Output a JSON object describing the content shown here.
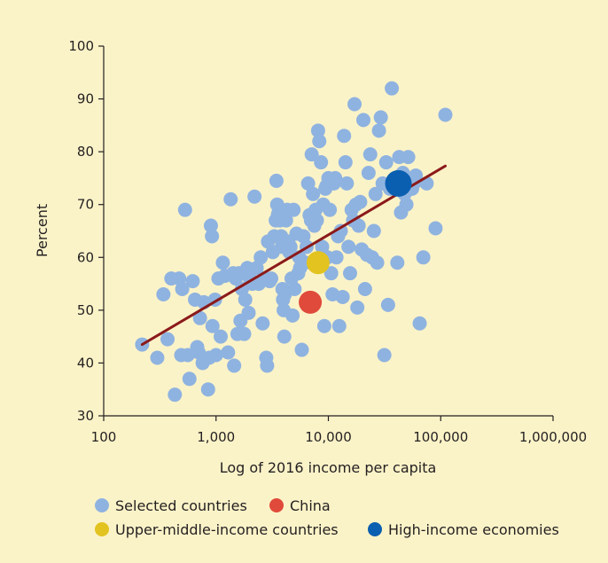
{
  "chart_data": {
    "type": "scatter",
    "title": "",
    "xlabel": "Log of 2016 income per capita",
    "ylabel": "Percent",
    "x_scale": "log",
    "xlim": [
      100,
      1000000
    ],
    "ylim": [
      30,
      100
    ],
    "x_ticks": [
      {
        "value": 100,
        "label": "100"
      },
      {
        "value": 1000,
        "label": "1,000"
      },
      {
        "value": 10000,
        "label": "10,000"
      },
      {
        "value": 100000,
        "label": "100,000"
      },
      {
        "value": 1000000,
        "label": "1,000,000"
      }
    ],
    "y_ticks": [
      {
        "value": 30,
        "label": "30"
      },
      {
        "value": 40,
        "label": "40"
      },
      {
        "value": 50,
        "label": "50"
      },
      {
        "value": 60,
        "label": "60"
      },
      {
        "value": 70,
        "label": "70"
      },
      {
        "value": 80,
        "label": "80"
      },
      {
        "value": 90,
        "label": "90"
      },
      {
        "value": 100,
        "label": "100"
      }
    ],
    "grid": false,
    "legend_position": "bottom",
    "colors": {
      "background": "#fbf3c8",
      "selected": "#8fb3e0",
      "china": "#e04a3a",
      "umic": "#e2c320",
      "high": "#0a5fb0",
      "trend": "#8b1a1a",
      "axis": "#231f20"
    },
    "trendline": {
      "x": [
        220,
        110000
      ],
      "y": [
        43.5,
        77.3
      ]
    },
    "series": [
      {
        "name": "Selected countries",
        "color_key": "selected",
        "points": [
          [
            220,
            43.5
          ],
          [
            300,
            41
          ],
          [
            340,
            53
          ],
          [
            370,
            44.5
          ],
          [
            400,
            56
          ],
          [
            430,
            34
          ],
          [
            470,
            56
          ],
          [
            490,
            41.5
          ],
          [
            500,
            54
          ],
          [
            530,
            69
          ],
          [
            560,
            41.5
          ],
          [
            580,
            37
          ],
          [
            620,
            55.5
          ],
          [
            650,
            52
          ],
          [
            680,
            43
          ],
          [
            700,
            42
          ],
          [
            720,
            48.5
          ],
          [
            760,
            40
          ],
          [
            780,
            51.5
          ],
          [
            850,
            35
          ],
          [
            870,
            41
          ],
          [
            900,
            66
          ],
          [
            920,
            64
          ],
          [
            930,
            47
          ],
          [
            980,
            52
          ],
          [
            1000,
            41.5
          ],
          [
            1050,
            56
          ],
          [
            1100,
            45
          ],
          [
            1150,
            59
          ],
          [
            1200,
            56.5
          ],
          [
            1280,
            42
          ],
          [
            1350,
            71
          ],
          [
            1420,
            57
          ],
          [
            1450,
            39.5
          ],
          [
            1500,
            56
          ],
          [
            1550,
            45.5
          ],
          [
            1600,
            57
          ],
          [
            1650,
            48
          ],
          [
            1700,
            54
          ],
          [
            1780,
            45.5
          ],
          [
            1820,
            52
          ],
          [
            1900,
            58
          ],
          [
            1950,
            49.5
          ],
          [
            2000,
            56
          ],
          [
            2100,
            55
          ],
          [
            2200,
            71.5
          ],
          [
            2300,
            58
          ],
          [
            2400,
            55
          ],
          [
            2500,
            60
          ],
          [
            2600,
            47.5
          ],
          [
            2700,
            56
          ],
          [
            2800,
            41
          ],
          [
            2850,
            39.5
          ],
          [
            2900,
            63
          ],
          [
            3000,
            55.5
          ],
          [
            3100,
            56
          ],
          [
            3200,
            61
          ],
          [
            3300,
            64
          ],
          [
            3400,
            67
          ],
          [
            3450,
            74.5
          ],
          [
            3500,
            70
          ],
          [
            3550,
            68
          ],
          [
            3600,
            68.5
          ],
          [
            3700,
            67
          ],
          [
            3800,
            64
          ],
          [
            3850,
            62
          ],
          [
            3900,
            54
          ],
          [
            3950,
            52
          ],
          [
            4000,
            50
          ],
          [
            4050,
            45
          ],
          [
            4100,
            53
          ],
          [
            4200,
            67
          ],
          [
            4300,
            69
          ],
          [
            4400,
            63
          ],
          [
            4500,
            61
          ],
          [
            4600,
            62
          ],
          [
            4700,
            56
          ],
          [
            4800,
            49
          ],
          [
            4900,
            69
          ],
          [
            5000,
            54
          ],
          [
            5200,
            64.5
          ],
          [
            5400,
            57
          ],
          [
            5500,
            60
          ],
          [
            5600,
            58
          ],
          [
            5800,
            42.5
          ],
          [
            6000,
            64
          ],
          [
            6200,
            59
          ],
          [
            6400,
            62
          ],
          [
            6600,
            74
          ],
          [
            6800,
            68
          ],
          [
            7000,
            67
          ],
          [
            7100,
            79.5
          ],
          [
            7200,
            68
          ],
          [
            7300,
            72
          ],
          [
            7500,
            66
          ],
          [
            7700,
            69
          ],
          [
            7900,
            67
          ],
          [
            8100,
            84
          ],
          [
            8300,
            82
          ],
          [
            8600,
            78
          ],
          [
            8800,
            62
          ],
          [
            9000,
            70
          ],
          [
            9200,
            47
          ],
          [
            9400,
            73
          ],
          [
            9600,
            73.5
          ],
          [
            9800,
            60
          ],
          [
            10000,
            75
          ],
          [
            10300,
            69
          ],
          [
            10600,
            57
          ],
          [
            10900,
            53
          ],
          [
            11200,
            74
          ],
          [
            11500,
            75
          ],
          [
            11800,
            60
          ],
          [
            12200,
            64
          ],
          [
            12500,
            47
          ],
          [
            12900,
            65
          ],
          [
            13400,
            52.5
          ],
          [
            13800,
            83
          ],
          [
            14200,
            78
          ],
          [
            14600,
            74
          ],
          [
            15100,
            62
          ],
          [
            15600,
            57
          ],
          [
            16100,
            69
          ],
          [
            16600,
            67
          ],
          [
            17100,
            89
          ],
          [
            17600,
            70
          ],
          [
            18100,
            50.5
          ],
          [
            18600,
            66
          ],
          [
            19200,
            70.5
          ],
          [
            19800,
            61.5
          ],
          [
            20500,
            86
          ],
          [
            21200,
            54
          ],
          [
            22000,
            60.5
          ],
          [
            22800,
            76
          ],
          [
            23600,
            79.5
          ],
          [
            24500,
            60
          ],
          [
            25400,
            65
          ],
          [
            26300,
            72
          ],
          [
            27200,
            59
          ],
          [
            28200,
            84
          ],
          [
            29300,
            86.5
          ],
          [
            30400,
            74
          ],
          [
            31500,
            41.5
          ],
          [
            32700,
            78
          ],
          [
            34000,
            51
          ],
          [
            35300,
            73
          ],
          [
            36700,
            92
          ],
          [
            38100,
            74
          ],
          [
            39600,
            73
          ],
          [
            41100,
            59
          ],
          [
            42700,
            79
          ],
          [
            44300,
            68.5
          ],
          [
            46000,
            76
          ],
          [
            47700,
            72
          ],
          [
            49500,
            70
          ],
          [
            51400,
            79
          ],
          [
            53500,
            74
          ],
          [
            55600,
            73
          ],
          [
            57800,
            74
          ],
          [
            60000,
            75.5
          ],
          [
            65000,
            47.5
          ],
          [
            70000,
            60
          ],
          [
            75000,
            74
          ],
          [
            90000,
            65.5
          ],
          [
            110000,
            87
          ]
        ]
      },
      {
        "name": "China",
        "color_key": "china",
        "points": [
          [
            6900,
            51.5
          ]
        ]
      },
      {
        "name": "Upper-middle-income countries",
        "color_key": "umic",
        "points": [
          [
            8100,
            59
          ]
        ]
      },
      {
        "name": "High-income economies",
        "color_key": "high",
        "points": [
          [
            42000,
            74
          ]
        ]
      }
    ]
  }
}
